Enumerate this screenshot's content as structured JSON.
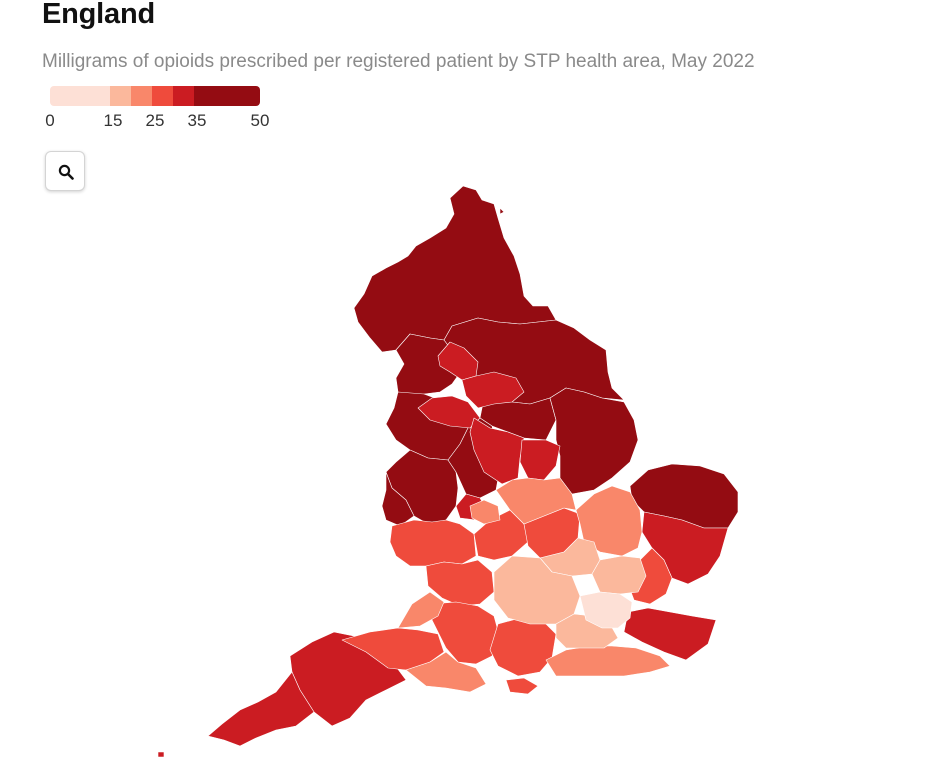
{
  "header": {
    "title": "England",
    "subtitle": "Milligrams of opioids prescribed per registered patient by STP health area, May 2022"
  },
  "legend": {
    "breaks": [
      0,
      15,
      20,
      25,
      30,
      35,
      50
    ],
    "tick_labels": [
      "0",
      "15",
      "25",
      "35",
      "50"
    ],
    "tick_values": [
      0,
      15,
      25,
      35,
      50
    ],
    "colors": [
      "#fde0d6",
      "#fbb89c",
      "#f9876a",
      "#ef4b3c",
      "#cb1c22",
      "#940c12"
    ]
  },
  "controls": {
    "zoom_icon": "magnifier-icon"
  },
  "map_colors": {
    "darkest": "#940c12",
    "dark": "#cb1c22",
    "mid_dark": "#ef4b3c",
    "mid": "#f9876a",
    "light": "#fbb89c",
    "lightest": "#fde0d6"
  }
}
